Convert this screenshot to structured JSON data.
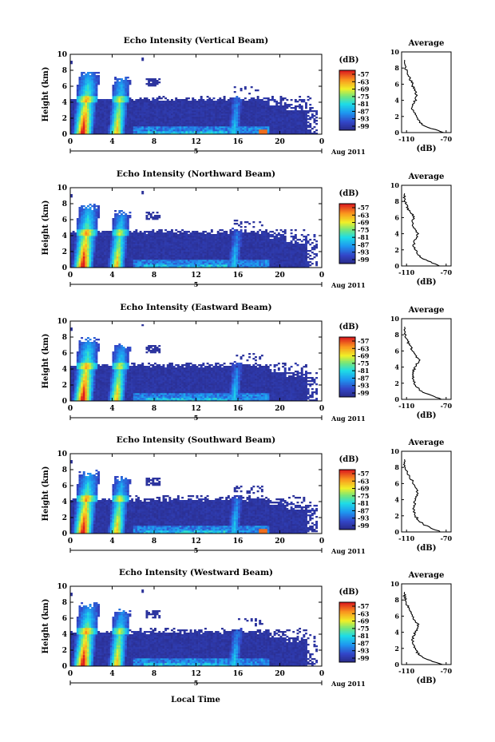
{
  "figure": {
    "shared_x_label": "Local Time",
    "date_label": "Aug 2011",
    "day_marker": "5",
    "colorbar_label": "(dB)",
    "avg_title": "Average",
    "avg_xlabel": "(dB)",
    "avg_ticks": [
      "-110",
      "-70"
    ]
  },
  "chart_data": [
    {
      "type": "heatmap",
      "title": "Echo Intensity (Vertical Beam)",
      "ylabel": "Height (km)",
      "xticks": [
        "0",
        "4",
        "8",
        "12",
        "16",
        "20",
        "0"
      ],
      "yticks": [
        "0",
        "2",
        "4",
        "6",
        "8",
        "10"
      ],
      "xlim": [
        0,
        24
      ],
      "ylim": [
        0,
        10
      ],
      "colorbar": {
        "label": "(dB)",
        "ticks": [
          "-57",
          "-63",
          "-69",
          "-75",
          "-81",
          "-87",
          "-93",
          "-99"
        ],
        "range": [
          -99,
          -57
        ]
      },
      "average_profile": {
        "title": "Average",
        "xlabel": "(dB)",
        "xticks": [
          "-110",
          "-70"
        ],
        "xlim": [
          -115,
          -65
        ],
        "ylim": [
          0,
          10
        ],
        "yticks": [
          "0",
          "2",
          "4",
          "6",
          "8",
          "10"
        ],
        "height": [
          0,
          0.5,
          1,
          1.5,
          2,
          2.5,
          3,
          3.5,
          4,
          4.5,
          5,
          5.5,
          6,
          6.5,
          7,
          7.5,
          8,
          8.5,
          9
        ],
        "value": [
          -72,
          -85,
          -94,
          -98,
          -101,
          -102,
          -104,
          -103,
          -101,
          -100,
          -101,
          -103,
          -104,
          -106,
          -108,
          -110,
          -111,
          -112,
          -112
        ]
      },
      "features": {
        "convective_towers_h": [
          1.3,
          4.4,
          15.8
        ],
        "layer_top_km": 4.4,
        "max_cloud_top_km": 8.6
      }
    },
    {
      "type": "heatmap",
      "title": "Echo Intensity (Northward Beam)",
      "ylabel": "Height (km)",
      "xticks": [
        "0",
        "4",
        "8",
        "12",
        "16",
        "20",
        "0"
      ],
      "yticks": [
        "0",
        "2",
        "4",
        "6",
        "8",
        "10"
      ],
      "xlim": [
        0,
        24
      ],
      "ylim": [
        0,
        10
      ],
      "colorbar": {
        "label": "(dB)",
        "ticks": [
          "-57",
          "-63",
          "-69",
          "-75",
          "-81",
          "-87",
          "-93",
          "-99"
        ],
        "range": [
          -99,
          -57
        ]
      },
      "average_profile": {
        "title": "Average",
        "xlabel": "(dB)",
        "xticks": [
          "-110",
          "-70"
        ],
        "xlim": [
          -115,
          -65
        ],
        "ylim": [
          0,
          10
        ],
        "yticks": [
          "0",
          "2",
          "4",
          "6",
          "8",
          "10"
        ],
        "height": [
          0,
          0.5,
          1,
          1.5,
          2,
          2.5,
          3,
          3.5,
          4,
          4.5,
          5,
          5.5,
          6,
          6.5,
          7,
          7.5,
          8,
          8.5,
          9
        ],
        "value": [
          -76,
          -86,
          -95,
          -99,
          -101,
          -103,
          -102,
          -100,
          -99,
          -101,
          -103,
          -104,
          -102,
          -105,
          -108,
          -110,
          -111,
          -112,
          -112
        ]
      },
      "features": {
        "convective_towers_h": [
          1.3,
          4.4,
          15.8
        ],
        "layer_top_km": 4.5,
        "max_cloud_top_km": 9.2
      }
    },
    {
      "type": "heatmap",
      "title": "Echo Intensity (Eastward Beam)",
      "ylabel": "Height (km)",
      "xticks": [
        "0",
        "4",
        "8",
        "12",
        "16",
        "20",
        "0"
      ],
      "yticks": [
        "0",
        "2",
        "4",
        "6",
        "8",
        "10"
      ],
      "xlim": [
        0,
        24
      ],
      "ylim": [
        0,
        10
      ],
      "colorbar": {
        "label": "(dB)",
        "ticks": [
          "-57",
          "-63",
          "-69",
          "-75",
          "-81",
          "-87",
          "-93",
          "-99"
        ],
        "range": [
          -99,
          -57
        ]
      },
      "average_profile": {
        "title": "Average",
        "xlabel": "(dB)",
        "xticks": [
          "-110",
          "-70"
        ],
        "xlim": [
          -115,
          -65
        ],
        "ylim": [
          0,
          10
        ],
        "yticks": [
          "0",
          "2",
          "4",
          "6",
          "8",
          "10"
        ],
        "height": [
          0,
          0.5,
          1,
          1.5,
          2,
          2.5,
          3,
          3.5,
          4,
          4.5,
          5,
          5.5,
          6,
          6.5,
          7,
          7.5,
          8,
          8.5,
          9
        ],
        "value": [
          -74,
          -86,
          -95,
          -99,
          -102,
          -103,
          -104,
          -103,
          -101,
          -99,
          -97,
          -102,
          -104,
          -106,
          -108,
          -110,
          -111,
          -112,
          -112
        ]
      },
      "features": {
        "convective_towers_h": [
          1.3,
          4.4,
          15.8
        ],
        "layer_top_km": 4.5,
        "max_cloud_top_km": 8.5
      }
    },
    {
      "type": "heatmap",
      "title": "Echo Intensity (Southward Beam)",
      "ylabel": "Height (km)",
      "xticks": [
        "0",
        "4",
        "8",
        "12",
        "16",
        "20",
        "0"
      ],
      "yticks": [
        "0",
        "2",
        "4",
        "6",
        "8",
        "10"
      ],
      "xlim": [
        0,
        24
      ],
      "ylim": [
        0,
        10
      ],
      "colorbar": {
        "label": "(dB)",
        "ticks": [
          "-57",
          "-63",
          "-69",
          "-75",
          "-81",
          "-87",
          "-93",
          "-99"
        ],
        "range": [
          -99,
          -57
        ]
      },
      "average_profile": {
        "title": "Average",
        "xlabel": "(dB)",
        "xticks": [
          "-110",
          "-70"
        ],
        "xlim": [
          -115,
          -65
        ],
        "ylim": [
          0,
          10
        ],
        "yticks": [
          "0",
          "2",
          "4",
          "6",
          "8",
          "10"
        ],
        "height": [
          0,
          0.5,
          1,
          1.5,
          2,
          2.5,
          3,
          3.5,
          4,
          4.5,
          5,
          5.5,
          6,
          6.5,
          7,
          7.5,
          8,
          8.5,
          9
        ],
        "value": [
          -75,
          -85,
          -94,
          -98,
          -101,
          -102,
          -103,
          -102,
          -101,
          -100,
          -99,
          -101,
          -103,
          -105,
          -108,
          -110,
          -111,
          -112,
          -112
        ]
      },
      "features": {
        "convective_towers_h": [
          1.3,
          4.4,
          15.8
        ],
        "layer_top_km": 4.3,
        "max_cloud_top_km": 8.6
      }
    },
    {
      "type": "heatmap",
      "title": "Echo Intensity (Westward Beam)",
      "ylabel": "Height (km)",
      "xticks": [
        "0",
        "4",
        "8",
        "12",
        "16",
        "20",
        "0"
      ],
      "yticks": [
        "0",
        "2",
        "4",
        "6",
        "8",
        "10"
      ],
      "xlim": [
        0,
        24
      ],
      "ylim": [
        0,
        10
      ],
      "colorbar": {
        "label": "(dB)",
        "ticks": [
          "-57",
          "-63",
          "-69",
          "-75",
          "-81",
          "-87",
          "-93",
          "-99"
        ],
        "range": [
          -99,
          -57
        ]
      },
      "average_profile": {
        "title": "Average",
        "xlabel": "(dB)",
        "xticks": [
          "-110",
          "-70"
        ],
        "xlim": [
          -115,
          -65
        ],
        "ylim": [
          0,
          10
        ],
        "yticks": [
          "0",
          "2",
          "4",
          "6",
          "8",
          "10"
        ],
        "height": [
          0,
          0.5,
          1,
          1.5,
          2,
          2.5,
          3,
          3.5,
          4,
          4.5,
          5,
          5.5,
          6,
          6.5,
          7,
          7.5,
          8,
          8.5,
          9
        ],
        "value": [
          -75,
          -86,
          -95,
          -99,
          -102,
          -103,
          -104,
          -103,
          -101,
          -99,
          -98,
          -102,
          -104,
          -106,
          -108,
          -110,
          -111,
          -112,
          -112
        ]
      },
      "features": {
        "convective_towers_h": [
          1.3,
          4.4,
          15.8
        ],
        "layer_top_km": 4.3,
        "max_cloud_top_km": 8.7
      }
    }
  ]
}
